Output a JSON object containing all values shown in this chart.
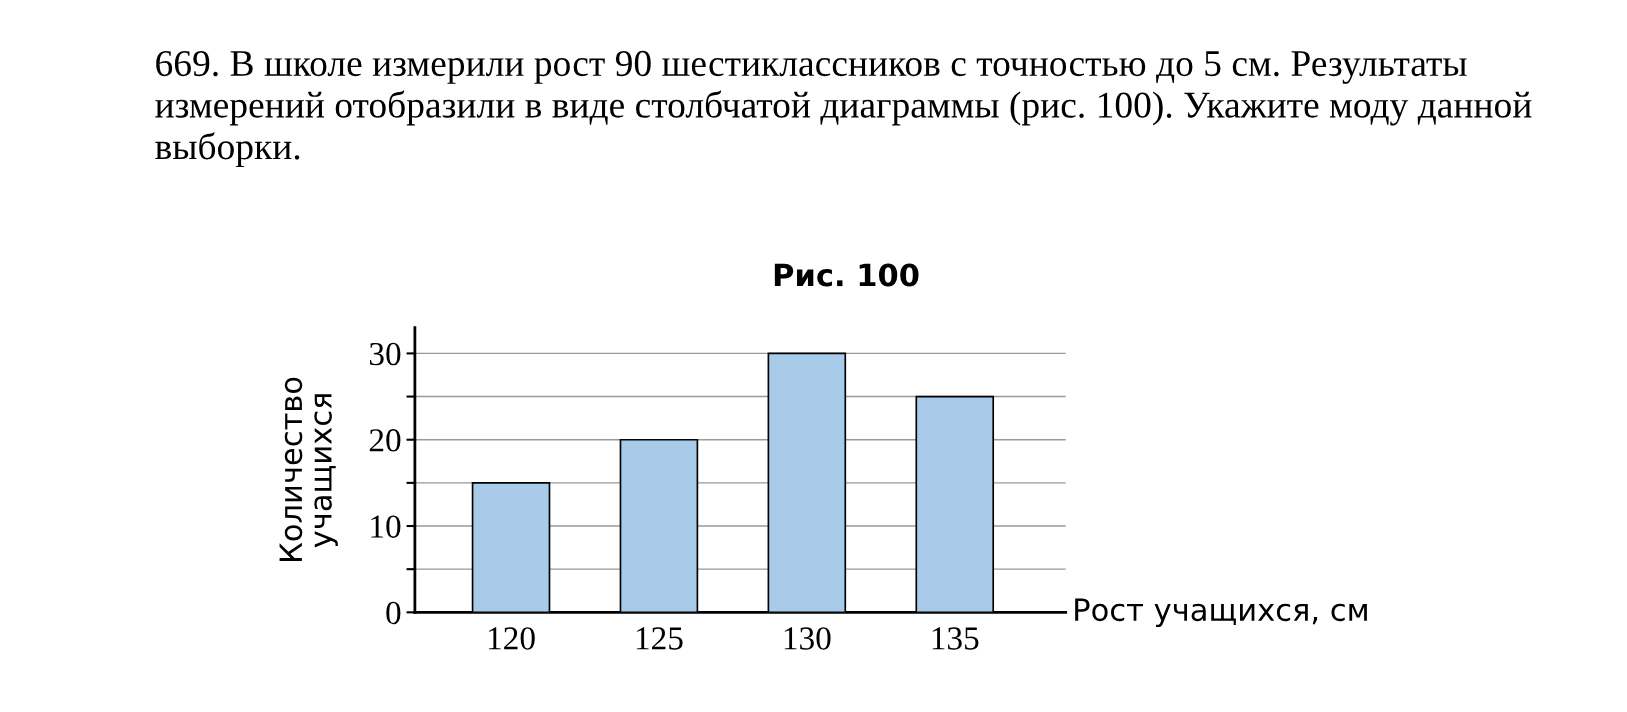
{
  "chart_data": {
    "type": "bar",
    "title": "669. В школе измерили рост 90 шестиклассников с точностью до 5 см. Результаты измерений отобразили в виде столбчатой диаграммы (рис. 100). Укажите моду данной выборки.",
    "subtitle": "Рис. 100",
    "xlabel": "Рост учащихся, см",
    "ylabel": "Количество\nучащихся",
    "categories": [
      "120",
      "125",
      "130",
      "135"
    ],
    "values": [
      15,
      20,
      30,
      25
    ],
    "color": "#a9cbea",
    "ylim": [
      0,
      33
    ],
    "yticks": [
      0,
      {
        "value": 5,
        "label": null
      },
      10,
      {
        "value": 15,
        "label": null
      },
      20,
      {
        "value": 25,
        "label": null
      },
      30
    ],
    "grid": "y",
    "legend": false
  }
}
